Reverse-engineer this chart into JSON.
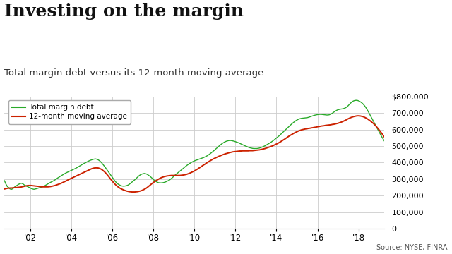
{
  "title": "Investing on the margin",
  "subtitle": "Total margin debt versus its 12-month moving average",
  "source": "Source: NYSE, FINRA",
  "line1_label": "Total margin debt",
  "line2_label": "12-month moving average",
  "line1_color": "#2aaa2a",
  "line2_color": "#cc2200",
  "background_color": "#ffffff",
  "grid_color": "#cccccc",
  "ylim": [
    0,
    800000
  ],
  "yticks": [
    0,
    100000,
    200000,
    300000,
    400000,
    500000,
    600000,
    700000,
    800000
  ],
  "xtick_positions": [
    2002,
    2004,
    2006,
    2008,
    2010,
    2012,
    2014,
    2016,
    2018
  ],
  "xtick_years": [
    "'02",
    "'04",
    "'06",
    "'08",
    "'10",
    "'12",
    "'14",
    "'16",
    "'18"
  ],
  "title_fontsize": 18,
  "subtitle_fontsize": 9.5,
  "x_start_year": 2000.75,
  "x_end_year": 2019.25,
  "margin_debt": [
    290000,
    270000,
    255000,
    248000,
    240000,
    238000,
    242000,
    250000,
    258000,
    262000,
    268000,
    272000,
    275000,
    272000,
    265000,
    260000,
    256000,
    252000,
    248000,
    243000,
    240000,
    238000,
    240000,
    242000,
    245000,
    248000,
    250000,
    253000,
    257000,
    261000,
    266000,
    271000,
    276000,
    281000,
    285000,
    290000,
    295000,
    301000,
    307000,
    312000,
    318000,
    323000,
    328000,
    333000,
    338000,
    342000,
    346000,
    350000,
    354000,
    358000,
    362000,
    366000,
    371000,
    376000,
    381000,
    386000,
    391000,
    396000,
    400000,
    405000,
    409000,
    413000,
    416000,
    419000,
    421000,
    422000,
    420000,
    416000,
    410000,
    402000,
    392000,
    381000,
    370000,
    358000,
    346000,
    334000,
    322000,
    310000,
    298000,
    286000,
    278000,
    270000,
    265000,
    260000,
    258000,
    257000,
    258000,
    260000,
    263000,
    268000,
    275000,
    282000,
    289000,
    296000,
    304000,
    312000,
    320000,
    326000,
    330000,
    333000,
    334000,
    332000,
    328000,
    322000,
    316000,
    308000,
    300000,
    292000,
    286000,
    281000,
    278000,
    277000,
    277000,
    278000,
    280000,
    283000,
    287000,
    291000,
    296000,
    303000,
    310000,
    318000,
    326000,
    333000,
    340000,
    347000,
    354000,
    361000,
    368000,
    375000,
    382000,
    388000,
    394000,
    399000,
    404000,
    408000,
    412000,
    415000,
    418000,
    421000,
    424000,
    427000,
    430000,
    434000,
    438000,
    443000,
    449000,
    455000,
    462000,
    469000,
    476000,
    484000,
    491000,
    499000,
    506000,
    513000,
    519000,
    524000,
    528000,
    531000,
    533000,
    534000,
    533000,
    531000,
    529000,
    526000,
    523000,
    520000,
    516000,
    512000,
    508000,
    504000,
    500000,
    497000,
    493000,
    490000,
    488000,
    486000,
    485000,
    485000,
    485000,
    486000,
    488000,
    491000,
    494000,
    498000,
    502000,
    507000,
    512000,
    517000,
    522000,
    528000,
    534000,
    541000,
    548000,
    555000,
    562000,
    570000,
    578000,
    586000,
    594000,
    602000,
    610000,
    618000,
    626000,
    634000,
    641000,
    648000,
    654000,
    659000,
    663000,
    666000,
    668000,
    669000,
    670000,
    671000,
    672000,
    674000,
    677000,
    680000,
    683000,
    686000,
    688000,
    690000,
    691000,
    692000,
    692000,
    691000,
    690000,
    689000,
    688000,
    688000,
    690000,
    694000,
    699000,
    705000,
    711000,
    716000,
    720000,
    722000,
    724000,
    725000,
    727000,
    730000,
    735000,
    742000,
    751000,
    760000,
    768000,
    773000,
    776000,
    777000,
    776000,
    773000,
    768000,
    762000,
    754000,
    744000,
    732000,
    718000,
    703000,
    687000,
    671000,
    655000,
    639000,
    623000,
    607000,
    591000,
    575000,
    560000,
    546000,
    532000
  ],
  "moving_avg": [
    240000,
    242000,
    244000,
    245000,
    246000,
    246000,
    247000,
    248000,
    249000,
    249000,
    250000,
    251000,
    252000,
    254000,
    256000,
    258000,
    260000,
    261000,
    261000,
    261000,
    260000,
    259000,
    258000,
    257000,
    256000,
    255000,
    254000,
    253000,
    253000,
    253000,
    253000,
    253000,
    254000,
    255000,
    257000,
    259000,
    261000,
    264000,
    267000,
    270000,
    273000,
    277000,
    281000,
    285000,
    289000,
    294000,
    298000,
    302000,
    306000,
    310000,
    314000,
    318000,
    322000,
    326000,
    330000,
    334000,
    338000,
    342000,
    346000,
    350000,
    354000,
    358000,
    362000,
    365000,
    367000,
    368000,
    368000,
    367000,
    364000,
    360000,
    354000,
    347000,
    339000,
    329000,
    319000,
    308000,
    297000,
    287000,
    277000,
    268000,
    260000,
    253000,
    247000,
    242000,
    238000,
    234000,
    231000,
    228000,
    226000,
    224000,
    223000,
    222000,
    222000,
    222000,
    223000,
    224000,
    226000,
    228000,
    231000,
    235000,
    239000,
    244000,
    250000,
    257000,
    264000,
    271000,
    278000,
    284000,
    290000,
    295000,
    300000,
    305000,
    309000,
    312000,
    315000,
    317000,
    319000,
    320000,
    321000,
    322000,
    322000,
    322000,
    322000,
    322000,
    322000,
    322000,
    323000,
    324000,
    325000,
    327000,
    329000,
    332000,
    335000,
    339000,
    343000,
    347000,
    352000,
    357000,
    362000,
    368000,
    373000,
    379000,
    385000,
    390000,
    396000,
    402000,
    407000,
    412000,
    417000,
    422000,
    426000,
    430000,
    434000,
    438000,
    441000,
    445000,
    448000,
    451000,
    454000,
    456000,
    459000,
    461000,
    463000,
    465000,
    466000,
    467000,
    468000,
    469000,
    470000,
    470000,
    471000,
    471000,
    471000,
    471000,
    471000,
    472000,
    472000,
    472000,
    473000,
    474000,
    475000,
    476000,
    477000,
    479000,
    481000,
    483000,
    485000,
    488000,
    491000,
    494000,
    497000,
    500000,
    504000,
    508000,
    512000,
    516000,
    521000,
    526000,
    531000,
    537000,
    542000,
    548000,
    554000,
    560000,
    565000,
    570000,
    575000,
    580000,
    584000,
    588000,
    592000,
    595000,
    598000,
    600000,
    602000,
    604000,
    605000,
    607000,
    608000,
    610000,
    611000,
    613000,
    614000,
    616000,
    618000,
    619000,
    621000,
    622000,
    623000,
    625000,
    626000,
    627000,
    628000,
    629000,
    631000,
    632000,
    634000,
    636000,
    638000,
    641000,
    644000,
    647000,
    651000,
    655000,
    659000,
    664000,
    668000,
    672000,
    675000,
    678000,
    680000,
    682000,
    683000,
    683000,
    682000,
    680000,
    678000,
    674000,
    670000,
    665000,
    659000,
    653000,
    646000,
    639000,
    631000,
    622000,
    612000,
    602000,
    591000,
    580000,
    568000,
    556000
  ]
}
